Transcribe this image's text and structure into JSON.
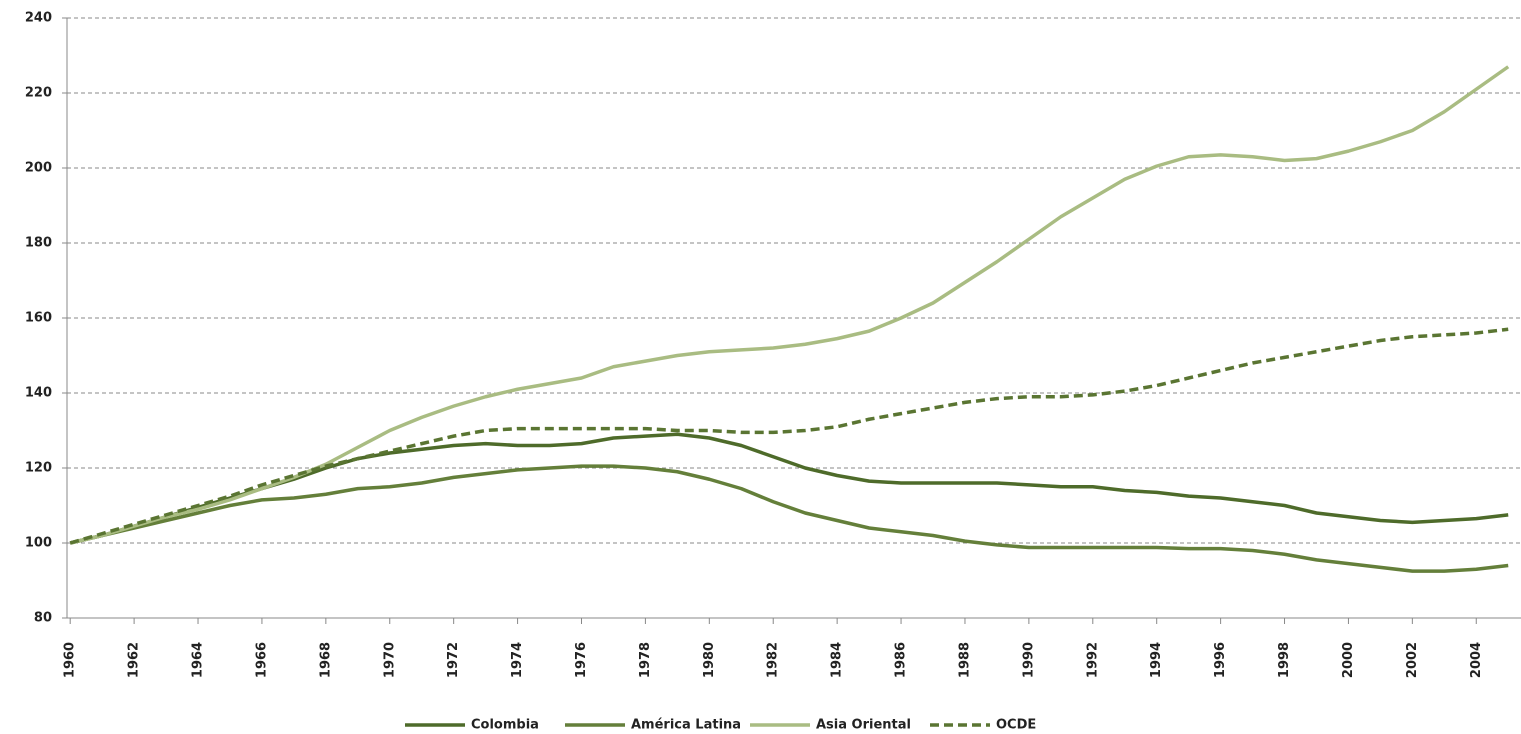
{
  "chart_data": {
    "type": "line",
    "x": [
      1960,
      1961,
      1962,
      1963,
      1964,
      1965,
      1966,
      1967,
      1968,
      1969,
      1970,
      1971,
      1972,
      1973,
      1974,
      1975,
      1976,
      1977,
      1978,
      1979,
      1980,
      1981,
      1982,
      1983,
      1984,
      1985,
      1986,
      1987,
      1988,
      1989,
      1990,
      1991,
      1992,
      1993,
      1994,
      1995,
      1996,
      1997,
      1998,
      1999,
      2000,
      2001,
      2002,
      2003,
      2004,
      2005
    ],
    "series": [
      {
        "name": "Colombia",
        "color": "#4e6b2a",
        "dash": false,
        "values": [
          100,
          102,
          104.5,
          107,
          109.5,
          112,
          114.5,
          117,
          120,
          122.5,
          124,
          125,
          126,
          126.5,
          126,
          126,
          126.5,
          128,
          128.5,
          129,
          128,
          126,
          123,
          120,
          118,
          116.5,
          116,
          116,
          116,
          116,
          115.5,
          115,
          115,
          114,
          113.5,
          112.5,
          112,
          111,
          110,
          108,
          107,
          106,
          105.5,
          106,
          106.5,
          107.5
        ]
      },
      {
        "name": "América Latina",
        "color": "#647f3a",
        "dash": false,
        "values": [
          100,
          102,
          104,
          106,
          108,
          110,
          111.5,
          112,
          113,
          114.5,
          115,
          116,
          117.5,
          118.5,
          119.5,
          120,
          120.5,
          120.5,
          120,
          119,
          117,
          114.5,
          111,
          108,
          106,
          104,
          103,
          102,
          100.5,
          99.5,
          98.8,
          98.8,
          98.8,
          98.8,
          98.8,
          98.5,
          98.5,
          98,
          97,
          95.5,
          94.5,
          93.5,
          92.5,
          92.5,
          93,
          94
        ]
      },
      {
        "name": "Asia Oriental",
        "color": "#a9bc82",
        "dash": false,
        "values": [
          100,
          102,
          104.5,
          107,
          109,
          111.5,
          114.5,
          117.5,
          121,
          125.5,
          130,
          133.5,
          136.5,
          139,
          141,
          142.5,
          144,
          147,
          148.5,
          150,
          151,
          151.5,
          152,
          153,
          154.5,
          156.5,
          160,
          164,
          169.5,
          175,
          181,
          187,
          192,
          197,
          200.5,
          203,
          203.5,
          203,
          202,
          202.5,
          204.5,
          207,
          210,
          215,
          221,
          227
        ]
      },
      {
        "name": "OCDE",
        "color": "#5a7532",
        "dash": true,
        "values": [
          100,
          102.5,
          105,
          107.5,
          110,
          112.5,
          115.5,
          118,
          120.5,
          122.5,
          124.5,
          126.5,
          128.5,
          130,
          130.5,
          130.5,
          130.5,
          130.5,
          130.5,
          130,
          130,
          129.5,
          129.5,
          130,
          131,
          133,
          134.5,
          136,
          137.5,
          138.5,
          139,
          139,
          139.5,
          140.5,
          142,
          144,
          146,
          148,
          149.5,
          151,
          152.5,
          154,
          155,
          155.5,
          156,
          157
        ]
      }
    ],
    "xlim": [
      1959.9,
      2005.4
    ],
    "xticks": [
      1960,
      1962,
      1964,
      1966,
      1968,
      1970,
      1972,
      1974,
      1976,
      1978,
      1980,
      1982,
      1984,
      1986,
      1988,
      1990,
      1992,
      1994,
      1996,
      1998,
      2000,
      2002,
      2004
    ],
    "ylim": [
      80,
      240
    ],
    "yticks": [
      80,
      100,
      120,
      140,
      160,
      180,
      200,
      220,
      240
    ],
    "grid": true,
    "legend": "bottom"
  }
}
